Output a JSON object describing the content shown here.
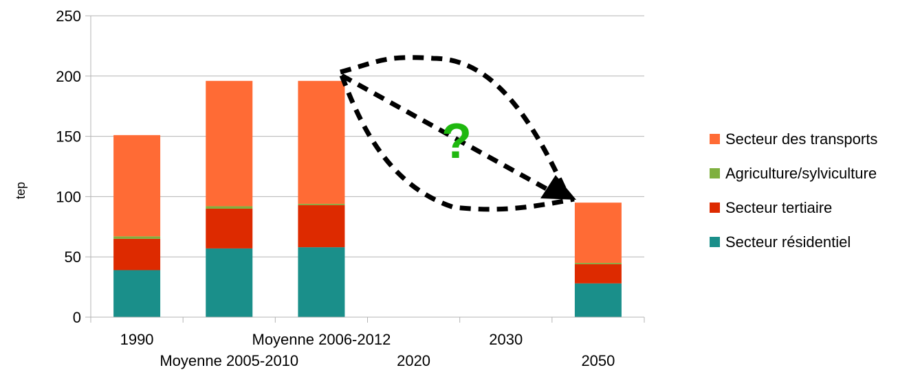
{
  "chart_data": {
    "type": "bar",
    "stacked": true,
    "categories": [
      "1990",
      "Moyenne 2005-2010",
      "Moyenne 2006-2012",
      "2020",
      "2030",
      "2050"
    ],
    "series": [
      {
        "name": "Secteur résidentiel",
        "color": "#1a8f8a",
        "values": [
          39,
          57,
          58,
          null,
          null,
          28
        ]
      },
      {
        "name": "Secteur tertiaire",
        "color": "#dd2a00",
        "values": [
          26,
          33,
          35,
          null,
          null,
          16
        ]
      },
      {
        "name": "Agriculture/sylviculture",
        "color": "#7fb03f",
        "values": [
          2,
          2,
          1,
          null,
          null,
          1
        ]
      },
      {
        "name": "Secteur des transports",
        "color": "#ff6b35",
        "values": [
          84,
          104,
          102,
          null,
          null,
          50
        ]
      }
    ],
    "ylabel": "tep",
    "xlabel": "",
    "ylim": [
      0,
      250
    ],
    "yticks": [
      0,
      50,
      100,
      150,
      200,
      250
    ],
    "grid": true,
    "legend_position": "right",
    "annotation": {
      "text": "?",
      "color": "#1fb80f"
    }
  }
}
